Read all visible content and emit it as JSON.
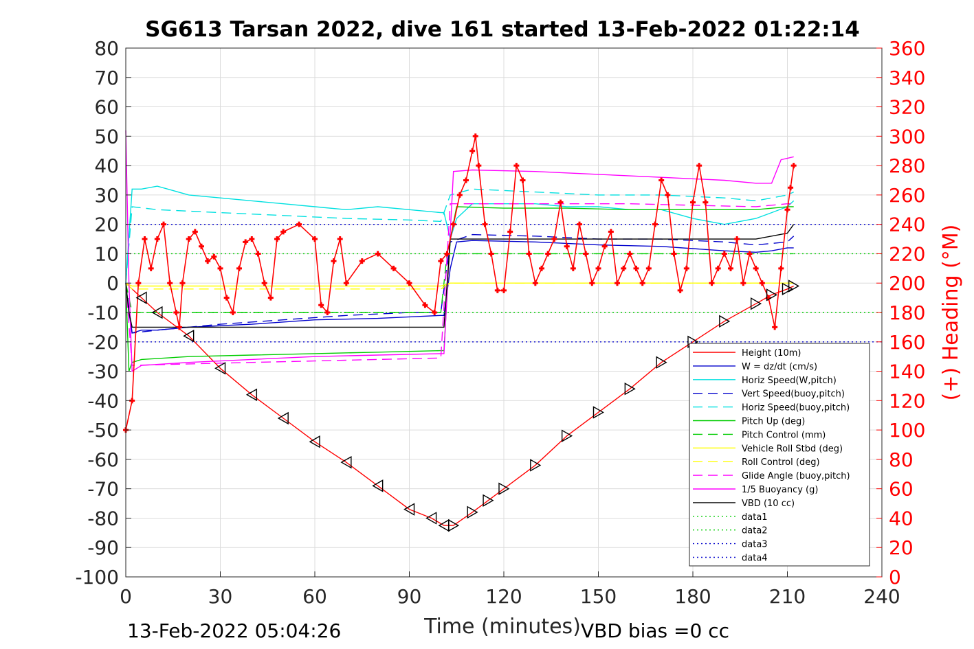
{
  "chart_data": {
    "type": "line",
    "title": "SG613 Tarsan 2022, dive 161 started 13-Feb-2022 01:22:14",
    "xlabel": "Time (minutes)",
    "ylabel": "",
    "y2label": "(+) Heading (°M)",
    "xlim": [
      0,
      240
    ],
    "ylim": [
      -100,
      80
    ],
    "y2lim": [
      0,
      360
    ],
    "xticks": [
      "0",
      "30",
      "60",
      "90",
      "120",
      "150",
      "180",
      "210",
      "240"
    ],
    "yticks": [
      "80",
      "70",
      "60",
      "50",
      "40",
      "30",
      "20",
      "10",
      "0",
      "-10",
      "-20",
      "-30",
      "-40",
      "-50",
      "-60",
      "-70",
      "-80",
      "-90",
      "-100"
    ],
    "y2ticks": [
      "360",
      "340",
      "320",
      "300",
      "280",
      "260",
      "240",
      "220",
      "200",
      "180",
      "160",
      "140",
      "120",
      "100",
      "80",
      "60",
      "40",
      "20",
      "0"
    ],
    "grid": true,
    "legend_position": "bottom-right",
    "series": [
      {
        "name": "Height (10m)",
        "color": "#ff0000",
        "style": "solid",
        "marker": "triangle",
        "x": [
          0,
          5,
          10,
          20,
          30,
          40,
          50,
          60,
          70,
          80,
          90,
          97,
          101,
          104,
          110,
          115,
          120,
          130,
          140,
          150,
          160,
          170,
          180,
          190,
          200,
          205,
          210,
          212
        ],
        "y": [
          0,
          -5,
          -10,
          -18,
          -29,
          -38,
          -46,
          -54,
          -61,
          -69,
          -77,
          -80,
          -82.5,
          -82.5,
          -78,
          -74,
          -70,
          -62,
          -52,
          -44,
          -36,
          -27,
          -20,
          -13,
          -7,
          -4,
          -2,
          -1
        ]
      },
      {
        "name": "W = dz/dt (cm/s)",
        "color": "#0000cc",
        "style": "solid",
        "x": [
          0,
          1,
          2,
          5,
          10,
          20,
          40,
          60,
          80,
          100,
          101,
          103,
          105,
          110,
          130,
          150,
          170,
          190,
          200,
          205,
          210,
          212
        ],
        "y": [
          0,
          -10,
          -17,
          -16,
          -16,
          -15,
          -14,
          -12.5,
          -12,
          -11,
          -11,
          5,
          14,
          14.5,
          14,
          13,
          12.5,
          11,
          10.5,
          11,
          12,
          12
        ]
      },
      {
        "name": "Horiz Speed(W,pitch)",
        "color": "#00e0e0",
        "style": "solid",
        "x": [
          0,
          2,
          5,
          10,
          20,
          30,
          40,
          50,
          60,
          70,
          80,
          90,
          100,
          101,
          103,
          105,
          110,
          120,
          130,
          140,
          150,
          160,
          170,
          180,
          190,
          200,
          205,
          210,
          212
        ],
        "y": [
          0,
          32,
          32,
          33,
          30,
          29,
          28,
          27,
          26,
          25,
          26,
          25,
          24,
          24,
          15,
          22,
          27,
          27,
          27,
          26,
          26,
          25,
          25,
          22,
          20,
          22,
          24,
          26,
          28
        ]
      },
      {
        "name": "Vert Speed(buoy,pitch)",
        "color": "#0000cc",
        "style": "dashed",
        "x": [
          0,
          2,
          10,
          30,
          50,
          70,
          90,
          100,
          103,
          110,
          130,
          150,
          170,
          190,
          200,
          210,
          212
        ],
        "y": [
          0,
          -17,
          -16,
          -14,
          -12.5,
          -11,
          -10,
          -10,
          14,
          16.5,
          16,
          15,
          15,
          14,
          13,
          14,
          16
        ]
      },
      {
        "name": "Horiz Speed(buoy,pitch)",
        "color": "#00e0e0",
        "style": "dashed",
        "x": [
          0,
          2,
          10,
          30,
          50,
          70,
          90,
          100,
          103,
          110,
          130,
          150,
          170,
          190,
          200,
          210,
          212
        ],
        "y": [
          0,
          26,
          25,
          24,
          23,
          22,
          21.5,
          21,
          30,
          32,
          31,
          30,
          30,
          29,
          28,
          30,
          31
        ]
      },
      {
        "name": "Pitch Up (deg)",
        "color": "#00cc00",
        "style": "solid",
        "x": [
          0,
          1,
          2,
          5,
          20,
          40,
          60,
          80,
          100,
          101,
          103,
          105,
          120,
          140,
          160,
          180,
          200,
          210,
          212
        ],
        "y": [
          0,
          -30,
          -27,
          -26,
          -25,
          -24.5,
          -24,
          -23.5,
          -23,
          -23,
          15,
          26,
          25.5,
          25.5,
          25,
          25,
          25,
          26,
          26
        ]
      },
      {
        "name": "Pitch Control (mm)",
        "color": "#00cc00",
        "style": "dashed",
        "x": [
          0,
          2,
          100,
          102,
          212
        ],
        "y": [
          0,
          -10,
          -10,
          10,
          10
        ]
      },
      {
        "name": "Vehicle Roll Stbd (deg)",
        "color": "#ffff00",
        "style": "solid",
        "x": [
          0,
          2,
          20,
          40,
          60,
          80,
          100,
          103,
          120,
          140,
          160,
          180,
          200,
          212
        ],
        "y": [
          0,
          -1,
          -1,
          -1,
          -1,
          -1,
          -1,
          0,
          0,
          0,
          0,
          0,
          0,
          0
        ]
      },
      {
        "name": "Roll Control (deg)",
        "color": "#ffff00",
        "style": "dashed",
        "x": [
          0,
          2,
          100,
          103,
          212
        ],
        "y": [
          0,
          -2,
          -2,
          0,
          0
        ]
      },
      {
        "name": "Glide Angle (buoy,pitch)",
        "color": "#ff00ff",
        "style": "dashed",
        "x": [
          0,
          2,
          20,
          40,
          60,
          80,
          100,
          103,
          120,
          140,
          160,
          180,
          200,
          210,
          212
        ],
        "y": [
          0,
          -28,
          -27.5,
          -27,
          -26.5,
          -26,
          -25.5,
          27,
          27,
          27,
          27,
          26.5,
          26,
          27,
          27
        ]
      },
      {
        "name": "1/5 Buoyancy (g)",
        "color": "#ff00ff",
        "style": "solid",
        "x": [
          0,
          1,
          2,
          5,
          20,
          40,
          60,
          80,
          100,
          101,
          104,
          110,
          130,
          150,
          170,
          190,
          200,
          205,
          208,
          212
        ],
        "y": [
          52,
          0,
          -30,
          -28,
          -27,
          -26,
          -25,
          -24.5,
          -24,
          -24,
          38,
          38.5,
          38,
          37,
          36,
          35,
          34,
          34,
          42,
          43
        ]
      },
      {
        "name": "VBD (10 cc)",
        "color": "#000000",
        "style": "solid",
        "x": [
          0,
          1,
          2,
          20,
          40,
          60,
          80,
          100,
          101,
          103,
          120,
          140,
          160,
          180,
          200,
          210,
          212
        ],
        "y": [
          0,
          -10,
          -15,
          -15,
          -15,
          -15,
          -15,
          -15,
          -15,
          15,
          15,
          15,
          15,
          15,
          15,
          17,
          20
        ]
      },
      {
        "name": "data1",
        "color": "#00cc00",
        "style": "dotted",
        "x": [
          0,
          240
        ],
        "y": [
          10,
          10
        ]
      },
      {
        "name": "data2",
        "color": "#00cc00",
        "style": "dotted",
        "x": [
          0,
          240
        ],
        "y": [
          -10,
          -10
        ]
      },
      {
        "name": "data3",
        "color": "#0000cc",
        "style": "dotted",
        "x": [
          0,
          240
        ],
        "y": [
          20,
          20
        ]
      },
      {
        "name": "data4",
        "color": "#0000cc",
        "style": "dotted",
        "x": [
          0,
          240
        ],
        "y": [
          -20,
          -20
        ]
      }
    ],
    "heading": {
      "name": "(+) Heading (°M)",
      "color": "#ff0000",
      "axis": "right",
      "x": [
        0,
        2,
        4,
        6,
        8,
        10,
        12,
        14,
        16,
        17,
        18,
        20,
        22,
        24,
        26,
        28,
        30,
        32,
        34,
        36,
        38,
        40,
        42,
        44,
        46,
        48,
        50,
        55,
        60,
        62,
        64,
        66,
        68,
        70,
        75,
        80,
        85,
        90,
        95,
        98,
        100,
        102,
        104,
        106,
        108,
        110,
        111,
        112,
        114,
        116,
        118,
        120,
        122,
        124,
        126,
        128,
        130,
        132,
        134,
        136,
        138,
        140,
        142,
        144,
        146,
        148,
        150,
        152,
        154,
        156,
        158,
        160,
        162,
        164,
        166,
        168,
        170,
        172,
        174,
        176,
        178,
        180,
        182,
        184,
        186,
        188,
        190,
        192,
        194,
        196,
        198,
        200,
        202,
        204,
        206,
        208,
        210,
        211,
        212
      ],
      "y": [
        100,
        120,
        200,
        230,
        210,
        230,
        240,
        200,
        180,
        170,
        200,
        230,
        235,
        225,
        215,
        218,
        210,
        190,
        180,
        210,
        228,
        230,
        220,
        200,
        190,
        230,
        235,
        240,
        230,
        185,
        180,
        215,
        230,
        200,
        215,
        220,
        210,
        200,
        185,
        180,
        215,
        220,
        240,
        260,
        270,
        290,
        300,
        280,
        240,
        220,
        195,
        195,
        235,
        280,
        270,
        220,
        200,
        210,
        220,
        230,
        255,
        225,
        210,
        240,
        220,
        200,
        210,
        225,
        235,
        200,
        210,
        220,
        210,
        200,
        210,
        240,
        270,
        260,
        220,
        195,
        210,
        255,
        280,
        255,
        200,
        210,
        220,
        210,
        230,
        200,
        220,
        210,
        200,
        190,
        170,
        210,
        250,
        265,
        280
      ]
    },
    "annotations": [
      "13-Feb-2022 05:04:26",
      "VBD bias =0 cc"
    ]
  }
}
